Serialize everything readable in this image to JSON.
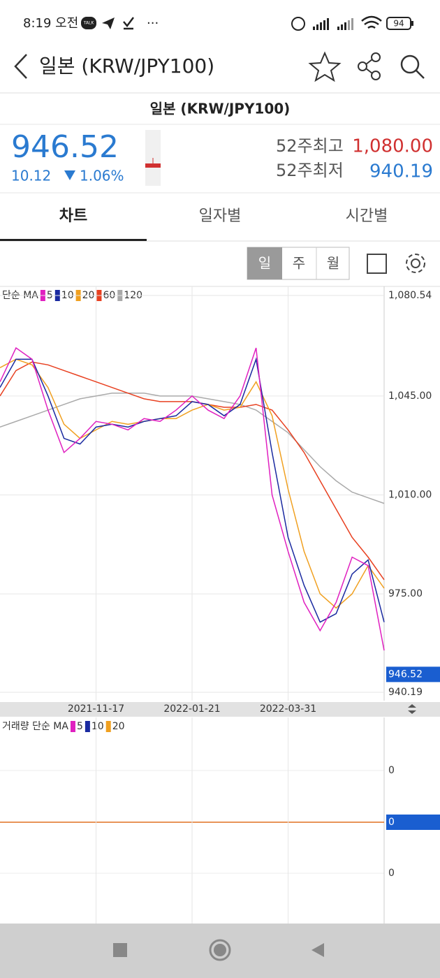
{
  "status_bar": {
    "time": "8:19 오전",
    "talk": "TALK",
    "battery": 94
  },
  "header": {
    "title": "일본 (KRW/JPY100)"
  },
  "quote": {
    "name": "일본 (KRW/JPY100)",
    "price": 946.52,
    "change": 10.12,
    "change_pct": "1.06%",
    "high_label": "52주최고",
    "high": "1,080.00",
    "low_label": "52주최저",
    "low": "940.19"
  },
  "tabs": [
    "차트",
    "일자별",
    "시간별"
  ],
  "periods": [
    "일",
    "주",
    "월"
  ],
  "chart_data": {
    "type": "line",
    "legend_title": "단순 MA",
    "categories": [
      null,
      null,
      null,
      null,
      null,
      null,
      "2021-11-17",
      null,
      null,
      null,
      null,
      null,
      "2022-01-21",
      null,
      null,
      null,
      null,
      null,
      "2022-03-31",
      null,
      null,
      null,
      null,
      null,
      null
    ],
    "series": [
      {
        "name": "5",
        "color": "#e020c0",
        "values": [
          1050,
          1062,
          1058,
          1040,
          1025,
          1030,
          1036,
          1035,
          1033,
          1037,
          1036,
          1040,
          1045,
          1040,
          1037,
          1045,
          1062,
          1010,
          990,
          972,
          962,
          972,
          988,
          985,
          955
        ]
      },
      {
        "name": "10",
        "color": "#1a2aa0",
        "values": [
          1048,
          1058,
          1058,
          1045,
          1030,
          1028,
          1034,
          1035,
          1034,
          1036,
          1037,
          1038,
          1043,
          1042,
          1038,
          1042,
          1058,
          1025,
          995,
          978,
          965,
          968,
          982,
          987,
          965
        ]
      },
      {
        "name": "20",
        "color": "#f0a020",
        "values": [
          1055,
          1058,
          1056,
          1048,
          1035,
          1030,
          1033,
          1036,
          1035,
          1036,
          1037,
          1037,
          1040,
          1042,
          1040,
          1041,
          1050,
          1038,
          1012,
          990,
          975,
          970,
          975,
          985,
          977
        ]
      },
      {
        "name": "60",
        "color": "#e84020",
        "values": [
          1045,
          1054,
          1057,
          1056,
          1054,
          1052,
          1050,
          1048,
          1046,
          1044,
          1043,
          1043,
          1043,
          1042,
          1041,
          1041,
          1042,
          1040,
          1033,
          1025,
          1015,
          1005,
          995,
          988,
          980
        ]
      },
      {
        "name": "120",
        "color": "#aaaaaa",
        "values": [
          1034,
          1036,
          1038,
          1040,
          1042,
          1044,
          1045,
          1046,
          1046,
          1046,
          1045,
          1045,
          1045,
          1044,
          1043,
          1042,
          1040,
          1036,
          1032,
          1026,
          1020,
          1015,
          1011,
          1009,
          1007
        ]
      }
    ],
    "ylim": [
      940.19,
      1080.54
    ],
    "yticks": [
      {
        "value": 1080.54,
        "label": "1,080.54"
      },
      {
        "value": 1045,
        "label": "1,045.00"
      },
      {
        "value": 1010,
        "label": "1,010.00"
      },
      {
        "value": 975,
        "label": "975.00"
      },
      940.19
    ],
    "current_price": 946.52,
    "grid": true
  },
  "volume_panel": {
    "legend_title": "거래량 단순 MA",
    "legend": [
      {
        "name": "5",
        "color": "#e020c0"
      },
      {
        "name": "10",
        "color": "#1a2aa0"
      },
      {
        "name": "20",
        "color": "#f0a020"
      }
    ],
    "axis_labels": [
      0,
      0
    ],
    "current": 0
  }
}
